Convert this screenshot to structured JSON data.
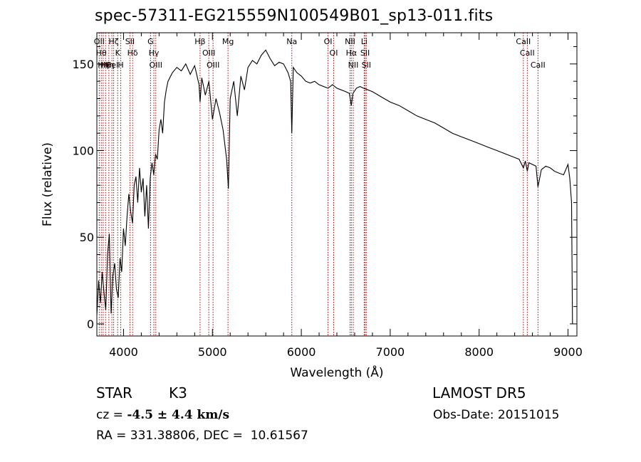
{
  "title": "spec-57311-EG215559N100549B01_sp13-011.fits",
  "info": {
    "object_type": "STAR",
    "subclass": "K3",
    "survey": "LAMOST DR5",
    "cz_prefix": "cz = ",
    "cz_value": "-4.5 ± 4.4 km/s",
    "obs_date": "Obs-Date: 20151015",
    "coords": "RA = 331.38806, DEC =  10.61567"
  },
  "chart_data": {
    "type": "line",
    "xlabel": "Wavelength (Å)",
    "ylabel": "Flux (relative)",
    "xlim": [
      3700,
      9100
    ],
    "ylim": [
      -7,
      168
    ],
    "xticks": [
      4000,
      5000,
      6000,
      7000,
      8000,
      9000
    ],
    "yticks": [
      0,
      50,
      100,
      150
    ],
    "grid": false,
    "series": [
      {
        "x": [
          3700,
          3720,
          3740,
          3760,
          3780,
          3800,
          3820,
          3840,
          3860,
          3880,
          3900,
          3920,
          3940,
          3960,
          3980,
          4000,
          4020,
          4040,
          4060,
          4080,
          4101,
          4120,
          4140,
          4160,
          4180,
          4200,
          4220,
          4240,
          4260,
          4280,
          4300,
          4320,
          4340,
          4360,
          4380,
          4400,
          4420,
          4440,
          4460,
          4480,
          4500,
          4550,
          4600,
          4650,
          4700,
          4750,
          4800,
          4850,
          4861,
          4880,
          4920,
          4960,
          5000,
          5040,
          5080,
          5120,
          5160,
          5180,
          5200,
          5240,
          5280,
          5320,
          5360,
          5400,
          5450,
          5500,
          5550,
          5600,
          5650,
          5700,
          5750,
          5800,
          5850,
          5880,
          5893,
          5910,
          5950,
          6000,
          6050,
          6100,
          6150,
          6200,
          6250,
          6300,
          6350,
          6400,
          6450,
          6500,
          6540,
          6563,
          6580,
          6620,
          6660,
          6700,
          6750,
          6800,
          6900,
          7000,
          7100,
          7200,
          7300,
          7400,
          7500,
          7600,
          7700,
          7800,
          7900,
          8000,
          8100,
          8200,
          8300,
          8400,
          8450,
          8498,
          8520,
          8542,
          8560,
          8600,
          8640,
          8662,
          8700,
          8750,
          8800,
          8850,
          8900,
          8950,
          9000,
          9020,
          9040,
          9050
        ],
        "y": [
          5,
          25,
          12,
          30,
          18,
          8,
          40,
          52,
          6,
          28,
          35,
          20,
          15,
          38,
          30,
          55,
          45,
          62,
          75,
          65,
          58,
          80,
          85,
          70,
          90,
          76,
          84,
          62,
          80,
          55,
          84,
          93,
          86,
          98,
          95,
          112,
          118,
          110,
          128,
          135,
          140,
          145,
          148,
          146,
          150,
          144,
          149,
          138,
          128,
          142,
          132,
          140,
          118,
          130,
          122,
          112,
          95,
          78,
          130,
          140,
          120,
          143,
          135,
          148,
          152,
          150,
          155,
          158,
          153,
          149,
          151,
          150,
          145,
          140,
          110,
          148,
          145,
          143,
          140,
          139,
          140,
          138,
          137,
          136,
          138,
          136,
          135,
          134,
          133,
          126,
          133,
          136,
          137,
          136,
          135,
          134,
          131,
          128,
          126,
          123,
          120,
          118,
          116,
          113,
          110,
          108,
          106,
          104,
          102,
          100,
          98,
          96,
          95,
          90,
          94,
          88,
          93,
          92,
          91,
          79,
          89,
          91,
          90,
          88,
          87,
          86,
          92,
          84,
          70,
          0
        ]
      }
    ],
    "lines": [
      {
        "w": 3727,
        "label": "OII"
      },
      {
        "w": 3750,
        "label": "Hθ"
      },
      {
        "w": 3771,
        "label": "Hη"
      },
      {
        "w": 3798,
        "label": "Hθ"
      },
      {
        "w": 3835,
        "label": "Hη"
      },
      {
        "w": 3869,
        "label": "HeI"
      },
      {
        "w": 3889,
        "label": "Hζ"
      },
      {
        "w": 3934,
        "label": "K"
      },
      {
        "w": 3969,
        "label": "H"
      },
      {
        "w": 4072,
        "label": "SII"
      },
      {
        "w": 4102,
        "label": "Hδ"
      },
      {
        "w": 4304,
        "label": "G"
      },
      {
        "w": 4341,
        "label": "Hγ"
      },
      {
        "w": 4363,
        "label": "OIII"
      },
      {
        "w": 4861,
        "label": "Hβ"
      },
      {
        "w": 4959,
        "label": "OIII"
      },
      {
        "w": 5007,
        "label": "OIII"
      },
      {
        "w": 5175,
        "label": "Mg"
      },
      {
        "w": 5893,
        "label": "Na"
      },
      {
        "w": 6300,
        "label": "OI"
      },
      {
        "w": 6364,
        "label": "OI"
      },
      {
        "w": 6548,
        "label": "NII"
      },
      {
        "w": 6563,
        "label": "Hα"
      },
      {
        "w": 6584,
        "label": "NII"
      },
      {
        "w": 6707,
        "label": "Li"
      },
      {
        "w": 6717,
        "label": "SII"
      },
      {
        "w": 6731,
        "label": "SII"
      },
      {
        "w": 8498,
        "label": "CaII"
      },
      {
        "w": 8542,
        "label": "CaII"
      },
      {
        "w": 8662,
        "label": "CaII"
      }
    ],
    "line_color": "#b00000"
  }
}
